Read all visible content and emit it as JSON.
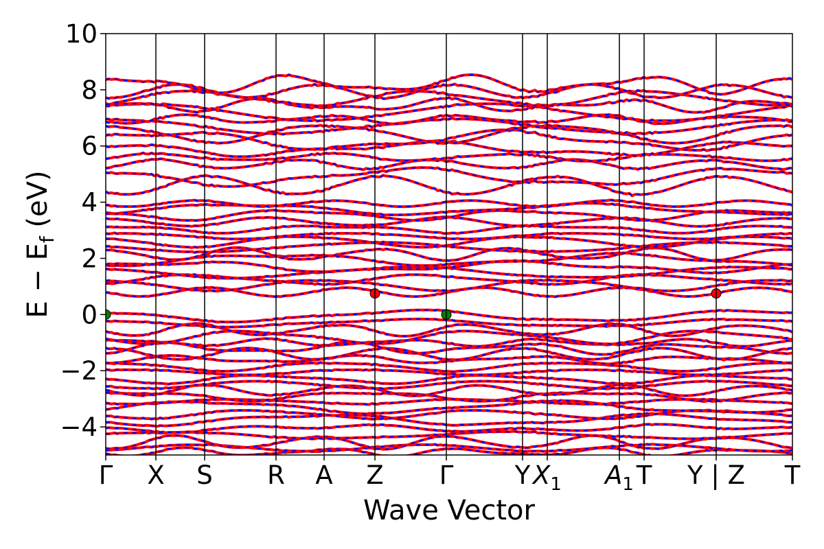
{
  "chart_data": {
    "type": "line",
    "title": "",
    "xlabel": "Wave Vector",
    "ylabel": "E − E_f (eV)",
    "ylabel_main": "E − E",
    "ylabel_sub": "f",
    "ylabel_tail": " (eV)",
    "ylim": [
      -5,
      10
    ],
    "yticks": [
      -4,
      -2,
      0,
      2,
      4,
      6,
      8,
      10
    ],
    "ytick_labels": [
      "−4",
      "−2",
      "0",
      "2",
      "4",
      "6",
      "8",
      "10"
    ],
    "k_path": [
      {
        "label": "Γ",
        "x": 0.0
      },
      {
        "label": "X",
        "x": 0.073
      },
      {
        "label": "S",
        "x": 0.144
      },
      {
        "label": "R",
        "x": 0.248
      },
      {
        "label": "A",
        "x": 0.318
      },
      {
        "label": "Z",
        "x": 0.392
      },
      {
        "label": "Γ",
        "x": 0.496
      },
      {
        "label": "Y",
        "x": 0.607
      },
      {
        "label": "X",
        "sub": "1",
        "x": 0.643
      },
      {
        "label": "A",
        "sub": "1",
        "x": 0.748
      },
      {
        "label": "T",
        "x": 0.784
      },
      {
        "label": "Y | Z",
        "x": 0.889
      },
      {
        "label": "T",
        "x": 1.0
      }
    ],
    "series": [
      {
        "color": "#ff0000",
        "style": "solid"
      },
      {
        "color": "#0000ff",
        "style": "dashed"
      }
    ],
    "band_groups": {
      "valence": [
        -4.9,
        -4.75,
        -4.55,
        -4.3,
        -4.05,
        -3.75,
        -3.55,
        -3.3,
        -3.1,
        -2.9,
        -2.7,
        -2.5,
        -2.3,
        -2.05,
        -1.85,
        -1.6,
        -1.4,
        -1.2,
        -1.0,
        -0.8,
        -0.55,
        -0.3,
        -0.05
      ],
      "conduction_low": [
        0.8,
        1.05,
        1.25,
        1.5,
        1.7,
        1.95,
        2.15,
        2.4,
        2.6,
        2.8,
        3.05,
        3.3,
        3.55,
        3.75,
        3.95
      ],
      "conduction_high": [
        4.6,
        4.9,
        5.35,
        5.6,
        5.9,
        6.2,
        6.45,
        6.7,
        6.95,
        7.2,
        7.45,
        7.7,
        7.95,
        8.2
      ]
    },
    "markers": [
      {
        "x": 0.0,
        "y": 0.0,
        "color": "#008000"
      },
      {
        "x": 0.496,
        "y": 0.0,
        "color": "#008000"
      },
      {
        "x": 0.392,
        "y": 0.75,
        "color": "#ff0000"
      },
      {
        "x": 0.889,
        "y": 0.75,
        "color": "#ff0000"
      }
    ]
  }
}
